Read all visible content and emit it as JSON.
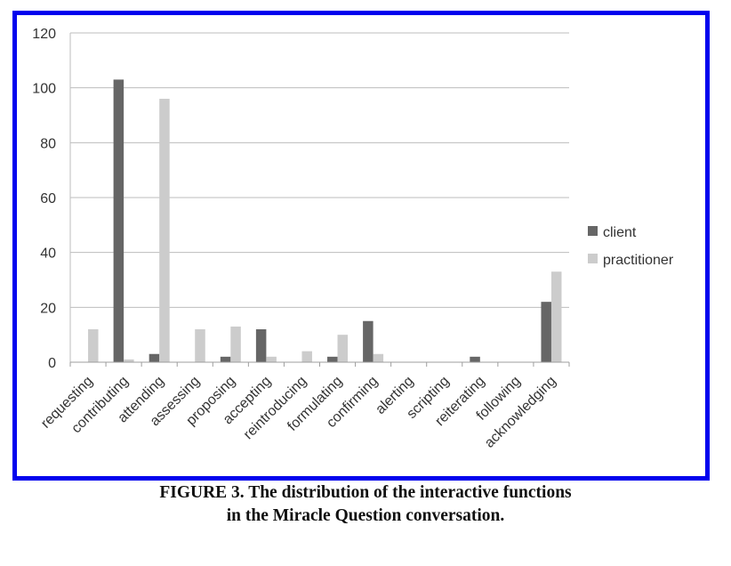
{
  "figure": {
    "caption_line1": "FIGURE 3.  The distribution of the interactive functions",
    "caption_line2": "in the Miracle Question conversation.",
    "border_color": "#0000ee"
  },
  "chart_data": {
    "type": "bar",
    "title": "",
    "xlabel": "",
    "ylabel": "",
    "ylim": [
      0,
      120
    ],
    "yticks": [
      0,
      20,
      40,
      60,
      80,
      100,
      120
    ],
    "grid": true,
    "legend_position": "right",
    "categories": [
      "requesting",
      "contributing",
      "attending",
      "assessing",
      "proposing",
      "accepting",
      "reintroducing",
      "formulating",
      "confirming",
      "alerting",
      "scripting",
      "reiterating",
      "following",
      "acknowledging"
    ],
    "series": [
      {
        "name": "client",
        "color": "#666666",
        "values": [
          0,
          103,
          3,
          0,
          2,
          12,
          0,
          2,
          15,
          0,
          0,
          2,
          0,
          22
        ]
      },
      {
        "name": "practitioner",
        "color": "#cccccc",
        "values": [
          12,
          1,
          96,
          12,
          13,
          2,
          4,
          10,
          3,
          0,
          0,
          0,
          0,
          33
        ]
      }
    ]
  }
}
